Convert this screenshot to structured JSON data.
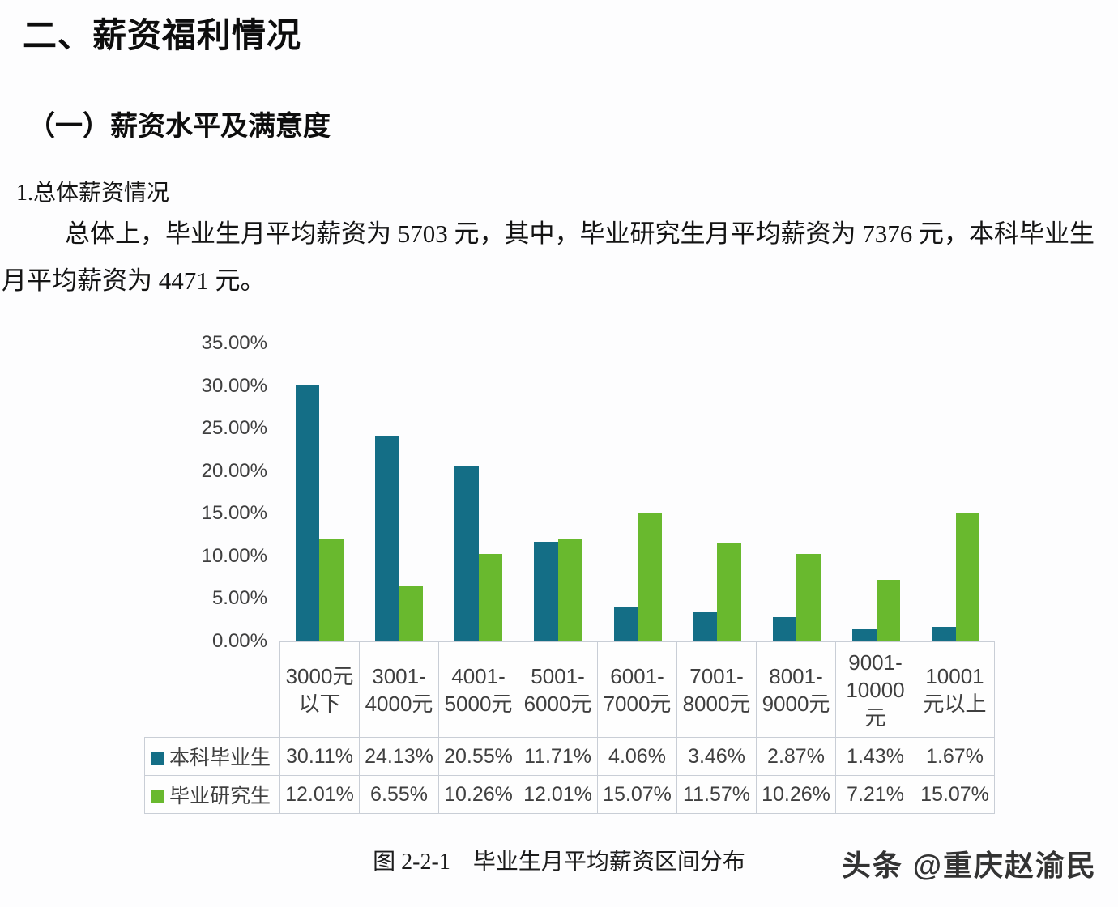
{
  "document": {
    "section_title": "二、薪资福利情况",
    "subsection_title": "（一）薪资水平及满意度",
    "item_heading": "1.总体薪资情况",
    "paragraph": "总体上，毕业生月平均薪资为 5703 元，其中，毕业研究生月平均薪资为 7376 元，本科毕业生月平均薪资为 4471 元。"
  },
  "chart_data": {
    "type": "bar",
    "title": "",
    "xlabel": "",
    "ylabel": "",
    "ylim": [
      0,
      35
    ],
    "ytick_step": 5,
    "yticks": [
      "35.00%",
      "30.00%",
      "25.00%",
      "20.00%",
      "15.00%",
      "10.00%",
      "5.00%",
      "0.00%"
    ],
    "grid": false,
    "legend_position": "table-left",
    "value_suffix": "%",
    "categories": [
      "3000元以下",
      "3001-4000元",
      "4001-5000元",
      "5001-6000元",
      "6001-7000元",
      "7001-8000元",
      "8001-9000元",
      "9001-10000元",
      "10001元以上"
    ],
    "category_lines": [
      [
        "3000元",
        "以下"
      ],
      [
        "3001-",
        "4000元"
      ],
      [
        "4001-",
        "5000元"
      ],
      [
        "5001-",
        "6000元"
      ],
      [
        "6001-",
        "7000元"
      ],
      [
        "7001-",
        "8000元"
      ],
      [
        "8001-",
        "9000元"
      ],
      [
        "9001-",
        "10000",
        "元"
      ],
      [
        "10001",
        "元以上"
      ]
    ],
    "series": [
      {
        "name": "本科毕业生",
        "color": "#146E86",
        "values": [
          30.11,
          24.13,
          20.55,
          11.71,
          4.06,
          3.46,
          2.87,
          1.43,
          1.67
        ]
      },
      {
        "name": "毕业研究生",
        "color": "#69B92E",
        "values": [
          12.01,
          6.55,
          10.26,
          12.01,
          15.07,
          11.57,
          10.26,
          7.21,
          15.07
        ]
      }
    ]
  },
  "figure": {
    "caption": "图 2-2-1　毕业生月平均薪资区间分布"
  },
  "watermark": {
    "text": "头条 @重庆赵渝民"
  },
  "colors": {
    "series_undergraduate": "#146E86",
    "series_postgraduate": "#69B92E",
    "table_border": "#c9ced6",
    "chart_text": "#3f3f3f"
  }
}
